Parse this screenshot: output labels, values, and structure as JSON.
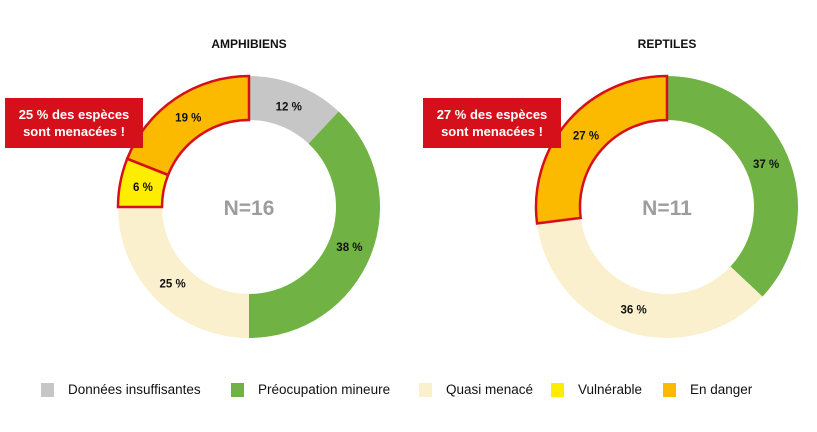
{
  "chart_data": [
    {
      "type": "pie",
      "title": "AMPHIBIENS",
      "center_label": "N=16",
      "callout": [
        "25 % des espèces",
        "sont menacées !"
      ],
      "slices": [
        {
          "category": "Données insuffisantes",
          "value": 12,
          "label": "12 %",
          "threatened": false
        },
        {
          "category": "Préocupation mineure",
          "value": 38,
          "label": "38 %",
          "threatened": false
        },
        {
          "category": "Quasi menacé",
          "value": 25,
          "label": "25 %",
          "threatened": false
        },
        {
          "category": "Vulnérable",
          "value": 6,
          "label": "6 %",
          "threatened": true
        },
        {
          "category": "En danger",
          "value": 19,
          "label": "19 %",
          "threatened": true
        }
      ]
    },
    {
      "type": "pie",
      "title": "REPTILES",
      "center_label": "N=11",
      "callout": [
        "27 % des espèces",
        "sont menacées !"
      ],
      "slices": [
        {
          "category": "Préocupation mineure",
          "value": 37,
          "label": "37 %",
          "threatened": false
        },
        {
          "category": "Quasi menacé",
          "value": 36,
          "label": "36 %",
          "threatened": false
        },
        {
          "category": "En danger",
          "value": 27,
          "label": "27 %",
          "threatened": true
        }
      ]
    }
  ],
  "legend": [
    {
      "label": "Données insuffisantes",
      "color": "#c6c6c6"
    },
    {
      "label": "Préocupation mineure",
      "color": "#70b244"
    },
    {
      "label": "Quasi menacé",
      "color": "#faf0cd"
    },
    {
      "label": "Vulnérable",
      "color": "#ffed00"
    },
    {
      "label": "En danger",
      "color": "#fbb900"
    }
  ],
  "highlight_color": "#d5101a"
}
